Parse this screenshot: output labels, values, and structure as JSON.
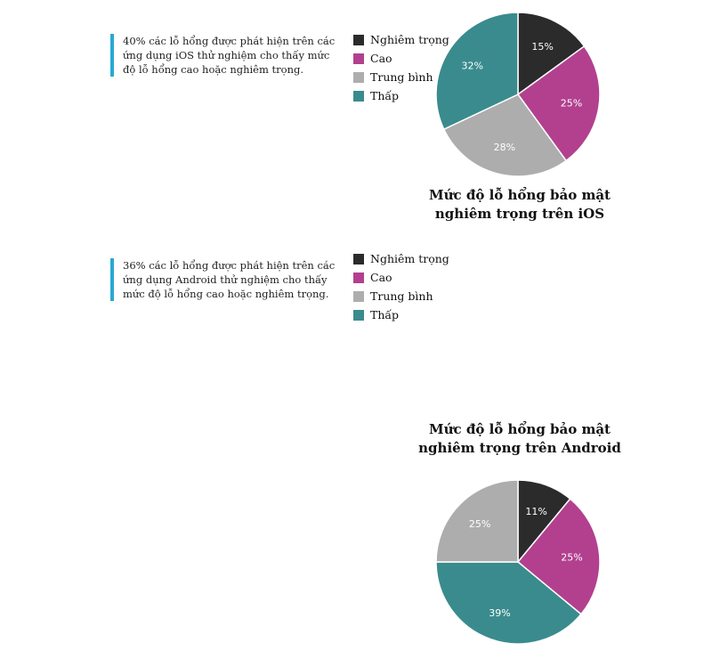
{
  "colors": {
    "accent_bar": "#29a9d3",
    "nghiem_trong": "#2b2b2b",
    "cao": "#b2408f",
    "trung_binh": "#adadad",
    "thap": "#3a8b8d"
  },
  "panels": [
    {
      "callout": "40% các lỗ hổng được phát hiện trên các ứng dụng iOS thử nghiệm cho thấy mức độ lỗ hổng cao hoặc nghiêm trọng."
    },
    {
      "callout": "36% các lỗ hổng được phát hiện trên các ứng dụng Android thử nghiệm cho thấy mức độ lỗ hổng cao hoặc nghiêm trọng."
    }
  ],
  "chart_data": [
    {
      "type": "pie",
      "title": "Mức độ lỗ hổng bảo mật nghiêm trọng trên iOS",
      "legend_position": "left",
      "slices": [
        {
          "label": "Nghiêm trọng",
          "value": 15,
          "display": "15%",
          "color": "#2b2b2b"
        },
        {
          "label": "Cao",
          "value": 25,
          "display": "25%",
          "color": "#b2408f"
        },
        {
          "label": "Trung bình",
          "value": 28,
          "display": "28%",
          "color": "#adadad"
        },
        {
          "label": "Thấp",
          "value": 32,
          "display": "32%",
          "color": "#3a8b8d"
        }
      ]
    },
    {
      "type": "pie",
      "title": "Mức độ lỗ hổng bảo mật nghiêm trọng trên Android",
      "legend_position": "left",
      "slices": [
        {
          "label": "Nghiêm trọng",
          "value": 11,
          "display": "11%",
          "color": "#2b2b2b"
        },
        {
          "label": "Cao",
          "value": 25,
          "display": "25%",
          "color": "#b2408f"
        },
        {
          "label": "Thấp",
          "value": 39,
          "display": "39%",
          "color": "#3a8b8d"
        },
        {
          "label": "Trung bình",
          "value": 25,
          "display": "25%",
          "color": "#adadad"
        }
      ],
      "legend_order": [
        "Nghiêm trọng",
        "Cao",
        "Trung bình",
        "Thấp"
      ]
    }
  ]
}
